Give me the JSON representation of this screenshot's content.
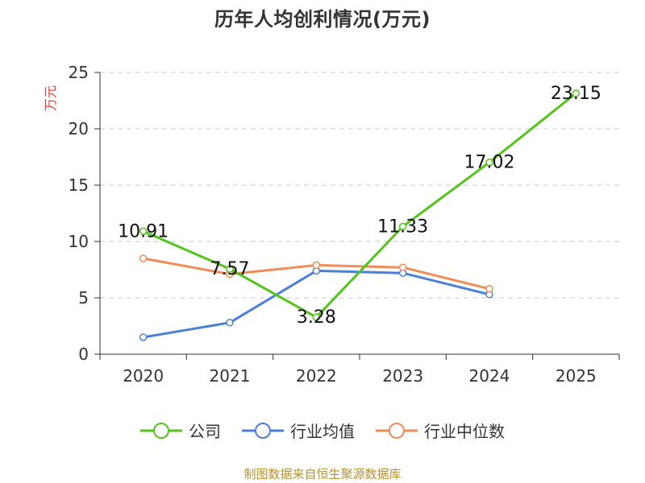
{
  "chart_data": {
    "type": "line",
    "title": "历年人均创利情况(万元)",
    "ylabel": "万元",
    "xlabel": "",
    "categories": [
      "2020",
      "2021",
      "2022",
      "2023",
      "2024",
      "2025"
    ],
    "ylim": [
      0,
      25
    ],
    "yticks": [
      0,
      5,
      10,
      15,
      20,
      25
    ],
    "grid": true,
    "legend_position": "bottom",
    "series": [
      {
        "name": "公司",
        "color": "#52c41a",
        "values": [
          10.91,
          7.57,
          3.28,
          11.33,
          17.02,
          23.15
        ],
        "labels": [
          "10.91",
          "7.57",
          "3.28",
          "11.33",
          "17.02",
          "23.15"
        ]
      },
      {
        "name": "行业均值",
        "color": "#4a7fd6",
        "values": [
          1.5,
          2.8,
          7.4,
          7.2,
          5.3,
          null
        ]
      },
      {
        "name": "行业中位数",
        "color": "#f28c56",
        "values": [
          8.5,
          7.1,
          7.9,
          7.7,
          5.8,
          null
        ]
      }
    ]
  },
  "footer": {
    "source": "制图数据来自恒生聚源数据库"
  }
}
